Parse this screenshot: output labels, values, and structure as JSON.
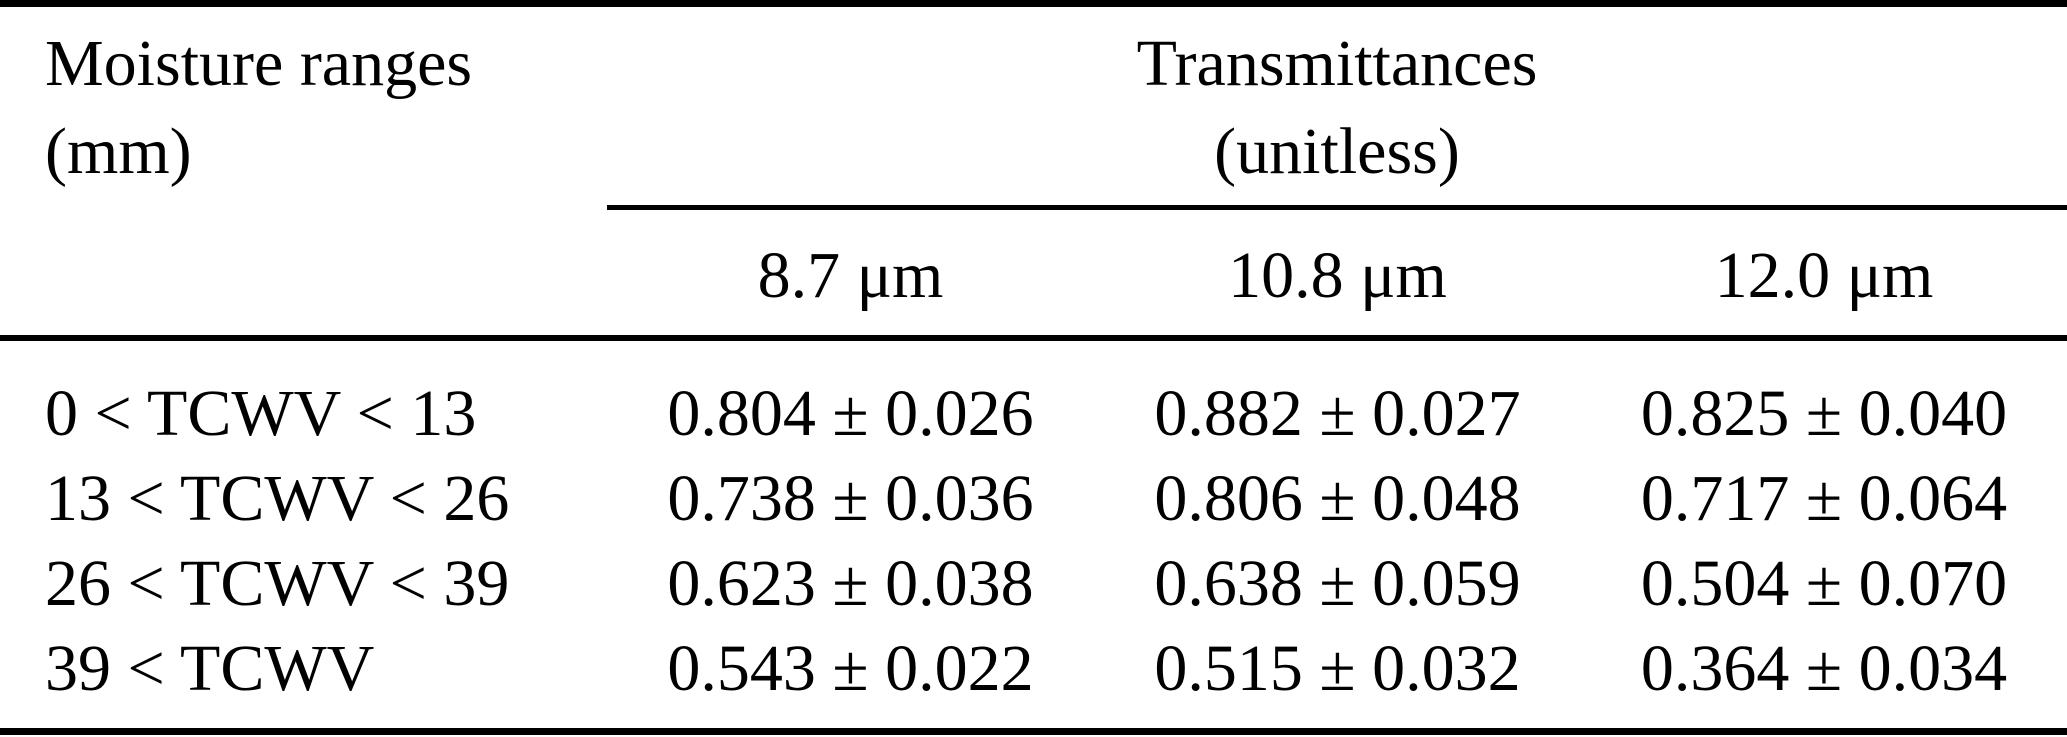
{
  "page": {
    "background_color": "#ffffff",
    "text_color": "#000000",
    "rule_color": "#000000"
  },
  "table": {
    "stub_header": {
      "line1": "Moisture ranges",
      "line2": "(mm)"
    },
    "group_header": {
      "line1": "Transmittances",
      "line2": "(unitless)"
    },
    "columns": [
      "8.7 μm",
      "10.8 μm",
      "12.0 μm"
    ],
    "rows": [
      {
        "range": "0 < TCWV < 13",
        "values": [
          "0.804 ± 0.026",
          "0.882 ± 0.027",
          "0.825 ± 0.040"
        ]
      },
      {
        "range": "13 < TCWV < 26",
        "values": [
          "0.738 ± 0.036",
          "0.806 ± 0.048",
          "0.717 ± 0.064"
        ]
      },
      {
        "range": "26 < TCWV < 39",
        "values": [
          "0.623 ± 0.038",
          "0.638 ± 0.059",
          "0.504 ± 0.070"
        ]
      },
      {
        "range": "39 < TCWV",
        "values": [
          "0.543 ± 0.022",
          "0.515 ± 0.032",
          "0.364 ± 0.034"
        ]
      }
    ]
  },
  "chart_data": {
    "type": "table",
    "columns": [
      "Moisture ranges (mm)",
      "8.7 μm",
      "10.8 μm",
      "12.0 μm"
    ],
    "rows": [
      [
        "0 < TCWV < 13",
        "0.804 ± 0.026",
        "0.882 ± 0.027",
        "0.825 ± 0.040"
      ],
      [
        "13 < TCWV < 26",
        "0.738 ± 0.036",
        "0.806 ± 0.048",
        "0.717 ± 0.064"
      ],
      [
        "26 < TCWV < 39",
        "0.623 ± 0.038",
        "0.638 ± 0.059",
        "0.504 ± 0.070"
      ],
      [
        "39 < TCWV",
        "0.543 ± 0.022",
        "0.515 ± 0.032",
        "0.364 ± 0.034"
      ]
    ]
  }
}
